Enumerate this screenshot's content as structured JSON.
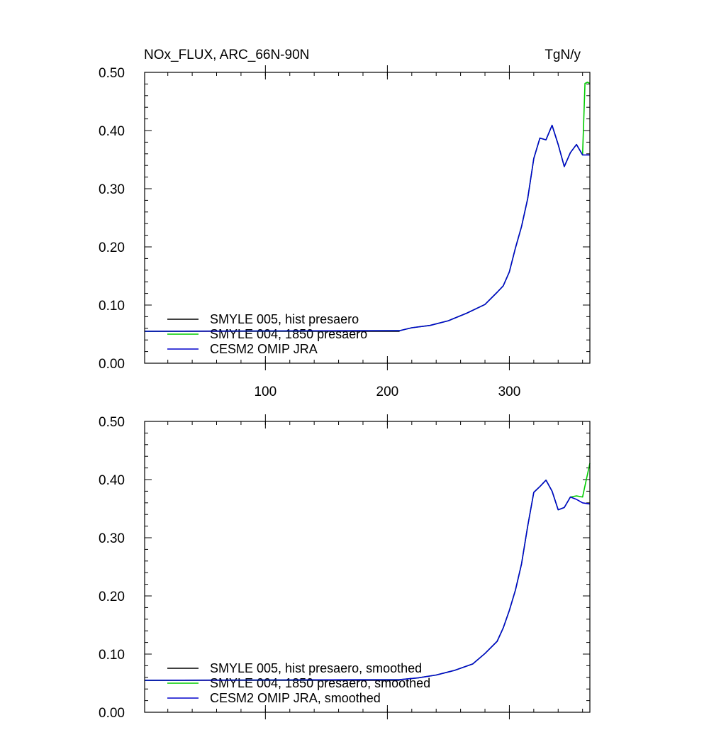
{
  "figure": {
    "title_left": "NOx_FLUX, ARC_66N-90N",
    "title_right": "TgN/y"
  },
  "chart_data": [
    {
      "type": "line",
      "panel": "top",
      "xlim": [
        1,
        366
      ],
      "ylim": [
        0,
        0.5
      ],
      "xticks": [
        100,
        200,
        300
      ],
      "xtick_labels": [
        "100",
        "200",
        "300"
      ],
      "yticks": [
        0,
        0.1,
        0.2,
        0.3,
        0.4,
        0.5
      ],
      "ytick_labels": [
        "0.00",
        "0.10",
        "0.20",
        "0.30",
        "0.40",
        "0.50"
      ],
      "legend_position": "bottom-left",
      "series": [
        {
          "name": "SMYLE 005, hist presaero",
          "color": "#000000",
          "x": [
            1,
            210
          ],
          "y": [
            0.055,
            0.055
          ]
        },
        {
          "name": "SMYLE 004, 1850 presaero",
          "color": "#00cc00",
          "x": [
            1,
            210,
            220,
            235,
            250,
            265,
            280,
            290,
            295,
            300,
            305,
            310,
            315,
            320,
            325,
            330,
            335,
            340,
            345,
            350,
            355,
            360,
            362,
            364,
            366
          ],
          "y": [
            0.055,
            0.056,
            0.061,
            0.065,
            0.073,
            0.086,
            0.101,
            0.122,
            0.133,
            0.157,
            0.198,
            0.235,
            0.283,
            0.352,
            0.387,
            0.384,
            0.409,
            0.376,
            0.338,
            0.362,
            0.376,
            0.358,
            0.481,
            0.483,
            0.481
          ]
        },
        {
          "name": "CESM2 OMIP JRA",
          "color": "#0000cc",
          "x": [
            1,
            210,
            220,
            235,
            250,
            265,
            280,
            290,
            295,
            300,
            305,
            310,
            315,
            320,
            325,
            330,
            335,
            340,
            345,
            350,
            355,
            360,
            366
          ],
          "y": [
            0.055,
            0.056,
            0.061,
            0.065,
            0.073,
            0.086,
            0.101,
            0.122,
            0.133,
            0.157,
            0.198,
            0.235,
            0.283,
            0.352,
            0.387,
            0.384,
            0.409,
            0.376,
            0.338,
            0.362,
            0.376,
            0.358,
            0.358
          ]
        }
      ]
    },
    {
      "type": "line",
      "panel": "bottom",
      "xlim": [
        1,
        366
      ],
      "ylim": [
        0,
        0.5
      ],
      "xticks": [
        100,
        200,
        300
      ],
      "xtick_labels": [],
      "yticks": [
        0,
        0.1,
        0.2,
        0.3,
        0.4,
        0.5
      ],
      "ytick_labels": [
        "0.00",
        "0.10",
        "0.20",
        "0.30",
        "0.40",
        "0.50"
      ],
      "legend_position": "bottom-left",
      "series": [
        {
          "name": "SMYLE 005, hist presaero, smoothed",
          "color": "#000000",
          "x": [
            1,
            210
          ],
          "y": [
            0.055,
            0.055
          ]
        },
        {
          "name": "SMYLE 004, 1850 presaero, smoothed",
          "color": "#00cc00",
          "x": [
            1,
            210,
            225,
            240,
            255,
            270,
            280,
            290,
            295,
            300,
            305,
            310,
            315,
            320,
            325,
            330,
            335,
            340,
            345,
            350,
            355,
            360,
            366
          ],
          "y": [
            0.055,
            0.056,
            0.059,
            0.064,
            0.072,
            0.083,
            0.101,
            0.122,
            0.145,
            0.175,
            0.21,
            0.255,
            0.32,
            0.378,
            0.388,
            0.399,
            0.38,
            0.348,
            0.352,
            0.37,
            0.372,
            0.37,
            0.428
          ]
        },
        {
          "name": "CESM2 OMIP JRA, smoothed",
          "color": "#0000cc",
          "x": [
            1,
            210,
            225,
            240,
            255,
            270,
            280,
            290,
            295,
            300,
            305,
            310,
            315,
            320,
            325,
            330,
            335,
            340,
            345,
            350,
            355,
            360,
            366
          ],
          "y": [
            0.055,
            0.056,
            0.059,
            0.064,
            0.072,
            0.083,
            0.101,
            0.122,
            0.145,
            0.175,
            0.21,
            0.255,
            0.32,
            0.378,
            0.388,
            0.399,
            0.38,
            0.348,
            0.352,
            0.37,
            0.366,
            0.36,
            0.358
          ]
        }
      ]
    }
  ]
}
